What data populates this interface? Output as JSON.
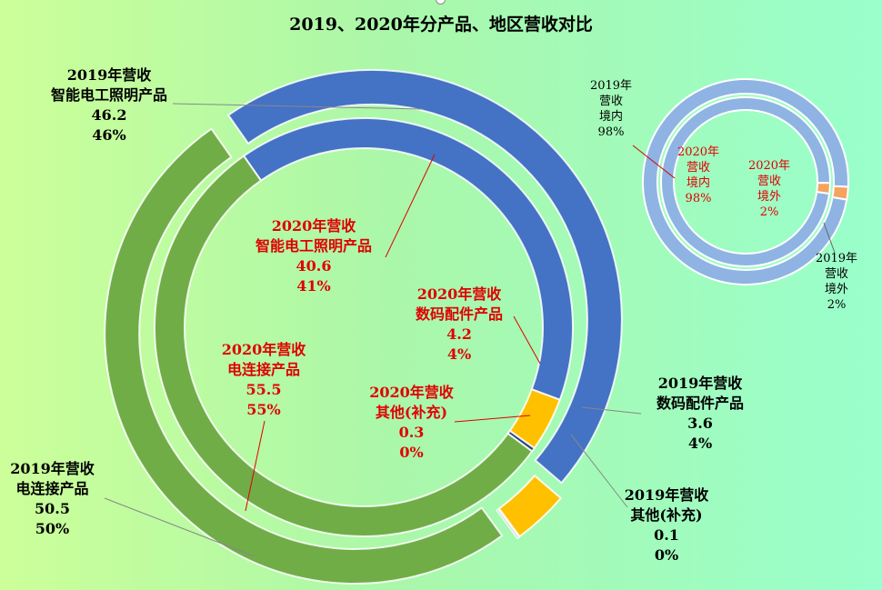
{
  "chart_data": [
    {
      "type": "donut",
      "title": "2019、2020年分产品、地区营收对比",
      "rings": [
        {
          "name": "2019年营收",
          "slices": [
            {
              "label": "智能电工照明产品",
              "value": 46.2,
              "percent": "46%",
              "color": "#4472c4"
            },
            {
              "label": "数码配件产品",
              "value": 3.6,
              "percent": "4%",
              "color": "#ffc000"
            },
            {
              "label": "其他(补充)",
              "value": 0.1,
              "percent": "0%",
              "color": "#264478"
            },
            {
              "label": "电连接产品",
              "value": 50.5,
              "percent": "50%",
              "color": "#70ad47"
            }
          ]
        },
        {
          "name": "2020年营收",
          "slices": [
            {
              "label": "智能电工照明产品",
              "value": 40.6,
              "percent": "41%",
              "color": "#4472c4"
            },
            {
              "label": "数码配件产品",
              "value": 4.2,
              "percent": "4%",
              "color": "#ffc000"
            },
            {
              "label": "其他(补充)",
              "value": 0.3,
              "percent": "0%",
              "color": "#264478"
            },
            {
              "label": "电连接产品",
              "value": 55.5,
              "percent": "55%",
              "color": "#70ad47"
            }
          ]
        }
      ]
    },
    {
      "type": "donut",
      "rings": [
        {
          "name": "2019年营收",
          "slices": [
            {
              "label": "境内",
              "percent": "98%",
              "value": 98,
              "color": "#8fb4e3"
            },
            {
              "label": "境外",
              "percent": "2%",
              "value": 2,
              "color": "#f4a460"
            }
          ]
        },
        {
          "name": "2020年营收",
          "slices": [
            {
              "label": "境内",
              "percent": "98%",
              "value": 98,
              "color": "#8fb4e3"
            },
            {
              "label": "境外",
              "percent": "2%",
              "value": 2,
              "color": "#f4a460"
            }
          ]
        }
      ]
    }
  ],
  "labels": {
    "big_2019_0": [
      "2019年营收",
      "智能电工照明产品",
      "46.2",
      "46%"
    ],
    "big_2019_1": [
      "2019年营收",
      "数码配件产品",
      "3.6",
      "4%"
    ],
    "big_2019_2": [
      "2019年营收",
      "其他(补充)",
      "0.1",
      "0%"
    ],
    "big_2019_3": [
      "2019年营收",
      "电连接产品",
      "50.5",
      "50%"
    ],
    "big_2020_0": [
      "2020年营收",
      "智能电工照明产品",
      "40.6",
      "41%"
    ],
    "big_2020_1": [
      "2020年营收",
      "数码配件产品",
      "4.2",
      "4%"
    ],
    "big_2020_2": [
      "2020年营收",
      "其他(补充)",
      "0.3",
      "0%"
    ],
    "big_2020_3": [
      "2020年营收",
      "电连接产品",
      "55.5",
      "55%"
    ],
    "small_2019_0": [
      "2019年",
      "营收",
      "境内",
      "98%"
    ],
    "small_2019_1": [
      "2019年",
      "营收",
      "境外",
      "2%"
    ],
    "small_2020_0": [
      "2020年",
      "营收",
      "境内",
      "98%"
    ],
    "small_2020_1": [
      "2020年",
      "营收",
      "境外",
      "2%"
    ]
  }
}
